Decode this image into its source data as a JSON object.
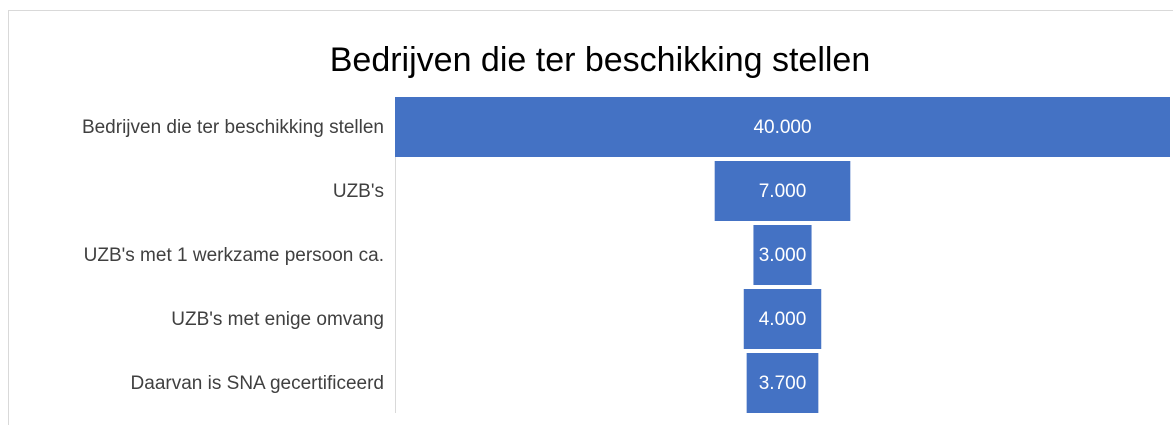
{
  "chart_data": {
    "type": "funnel",
    "title": "Bedrijven die ter beschikking stellen",
    "categories": [
      "Bedrijven die ter beschikking stellen",
      "UZB's",
      "UZB's met 1 werkzame persoon ca.",
      "UZB's met enige omvang",
      "Daarvan is SNA gecertificeerd"
    ],
    "values": [
      40000,
      7000,
      3000,
      4000,
      3700
    ],
    "value_labels": [
      "40.000",
      "7.000",
      "3.000",
      "4.000",
      "3.700"
    ],
    "color": "#4472c4"
  }
}
